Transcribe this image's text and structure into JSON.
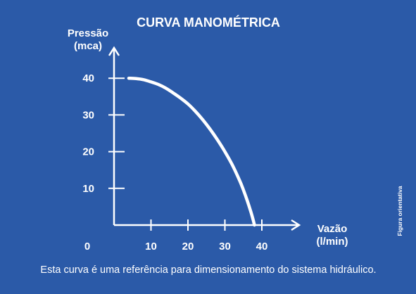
{
  "colors": {
    "background": "#2b5aa8",
    "foreground": "#ffffff"
  },
  "caption": "Esta curva é uma referência para dimensionamento do sistema hidráulico.",
  "side_note": "Figura orientativa",
  "chart_data": {
    "type": "line",
    "title": "CURVA MANOMÉTRICA",
    "ylabel": [
      "Pressão",
      "(mca)"
    ],
    "xlabel": [
      "Vazão",
      "(l/min)"
    ],
    "xlim": [
      0,
      40
    ],
    "ylim": [
      0,
      40
    ],
    "x_ticks": [
      10,
      20,
      30,
      40
    ],
    "y_ticks": [
      10,
      20,
      30,
      40
    ],
    "origin_label": "0",
    "grid": false,
    "series": [
      {
        "x": [
          4,
          6,
          8,
          10,
          12,
          14,
          16,
          18,
          20,
          22,
          24,
          26,
          28,
          30,
          32,
          34,
          35,
          36,
          37,
          37.6,
          38
        ],
        "y": [
          40,
          39.9,
          39.6,
          39.0,
          38.3,
          37.3,
          36.0,
          34.6,
          33.0,
          31.0,
          28.7,
          26.1,
          23.2,
          20.0,
          16.4,
          12.1,
          9.6,
          6.8,
          3.7,
          1.6,
          0.0
        ]
      }
    ]
  }
}
